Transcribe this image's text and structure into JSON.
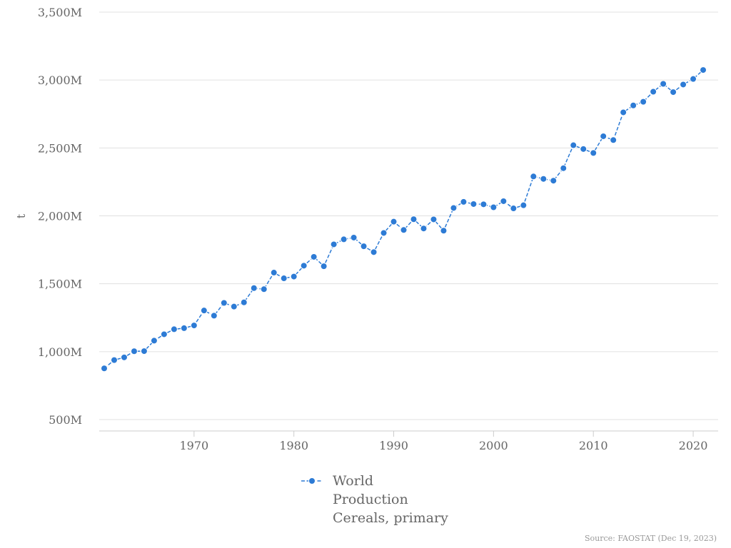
{
  "chart_data": {
    "type": "line",
    "title": "",
    "xlabel": "",
    "ylabel": "t",
    "x_ticks": [
      1970,
      1980,
      1990,
      2000,
      2010,
      2020
    ],
    "y_ticks": [
      500000000,
      1000000000,
      1500000000,
      2000000000,
      2500000000,
      3000000000,
      3500000000
    ],
    "y_tick_labels": [
      "500M",
      "1,000M",
      "1,500M",
      "2,000M",
      "2,500M",
      "3,000M",
      "3,500M"
    ],
    "xlim": [
      1960.5,
      2022.5
    ],
    "ylim": [
      500000000,
      3500000000
    ],
    "grid": true,
    "legend_position": "bottom",
    "legend_lines": [
      "World",
      "Production",
      "Cereals, primary"
    ],
    "source": "Source: FAOSTAT (Dec 19, 2023)",
    "series": [
      {
        "name": "World Production Cereals, primary",
        "color": "#2d7bd5",
        "x": [
          1961,
          1962,
          1963,
          1964,
          1965,
          1966,
          1967,
          1968,
          1969,
          1970,
          1971,
          1972,
          1973,
          1974,
          1975,
          1976,
          1977,
          1978,
          1979,
          1980,
          1981,
          1982,
          1983,
          1984,
          1985,
          1986,
          1987,
          1988,
          1989,
          1990,
          1991,
          1992,
          1993,
          1994,
          1995,
          1996,
          1997,
          1998,
          1999,
          2000,
          2001,
          2002,
          2003,
          2004,
          2005,
          2006,
          2007,
          2008,
          2009,
          2010,
          2011,
          2012,
          2013,
          2014,
          2015,
          2016,
          2017,
          2018,
          2019,
          2020,
          2021
        ],
        "values": [
          877000000,
          938000000,
          958000000,
          1003000000,
          1004000000,
          1081000000,
          1128000000,
          1165000000,
          1173000000,
          1193000000,
          1303000000,
          1265000000,
          1359000000,
          1332000000,
          1363000000,
          1468000000,
          1460000000,
          1582000000,
          1540000000,
          1553000000,
          1633000000,
          1698000000,
          1629000000,
          1790000000,
          1827000000,
          1840000000,
          1776000000,
          1733000000,
          1874000000,
          1957000000,
          1896000000,
          1975000000,
          1907000000,
          1974000000,
          1891000000,
          2058000000,
          2103000000,
          2087000000,
          2085000000,
          2063000000,
          2108000000,
          2055000000,
          2078000000,
          2290000000,
          2272000000,
          2259000000,
          2351000000,
          2520000000,
          2492000000,
          2463000000,
          2586000000,
          2558000000,
          2762000000,
          2813000000,
          2840000000,
          2914000000,
          2972000000,
          2911000000,
          2967000000,
          3008000000,
          3074000000
        ]
      }
    ]
  }
}
